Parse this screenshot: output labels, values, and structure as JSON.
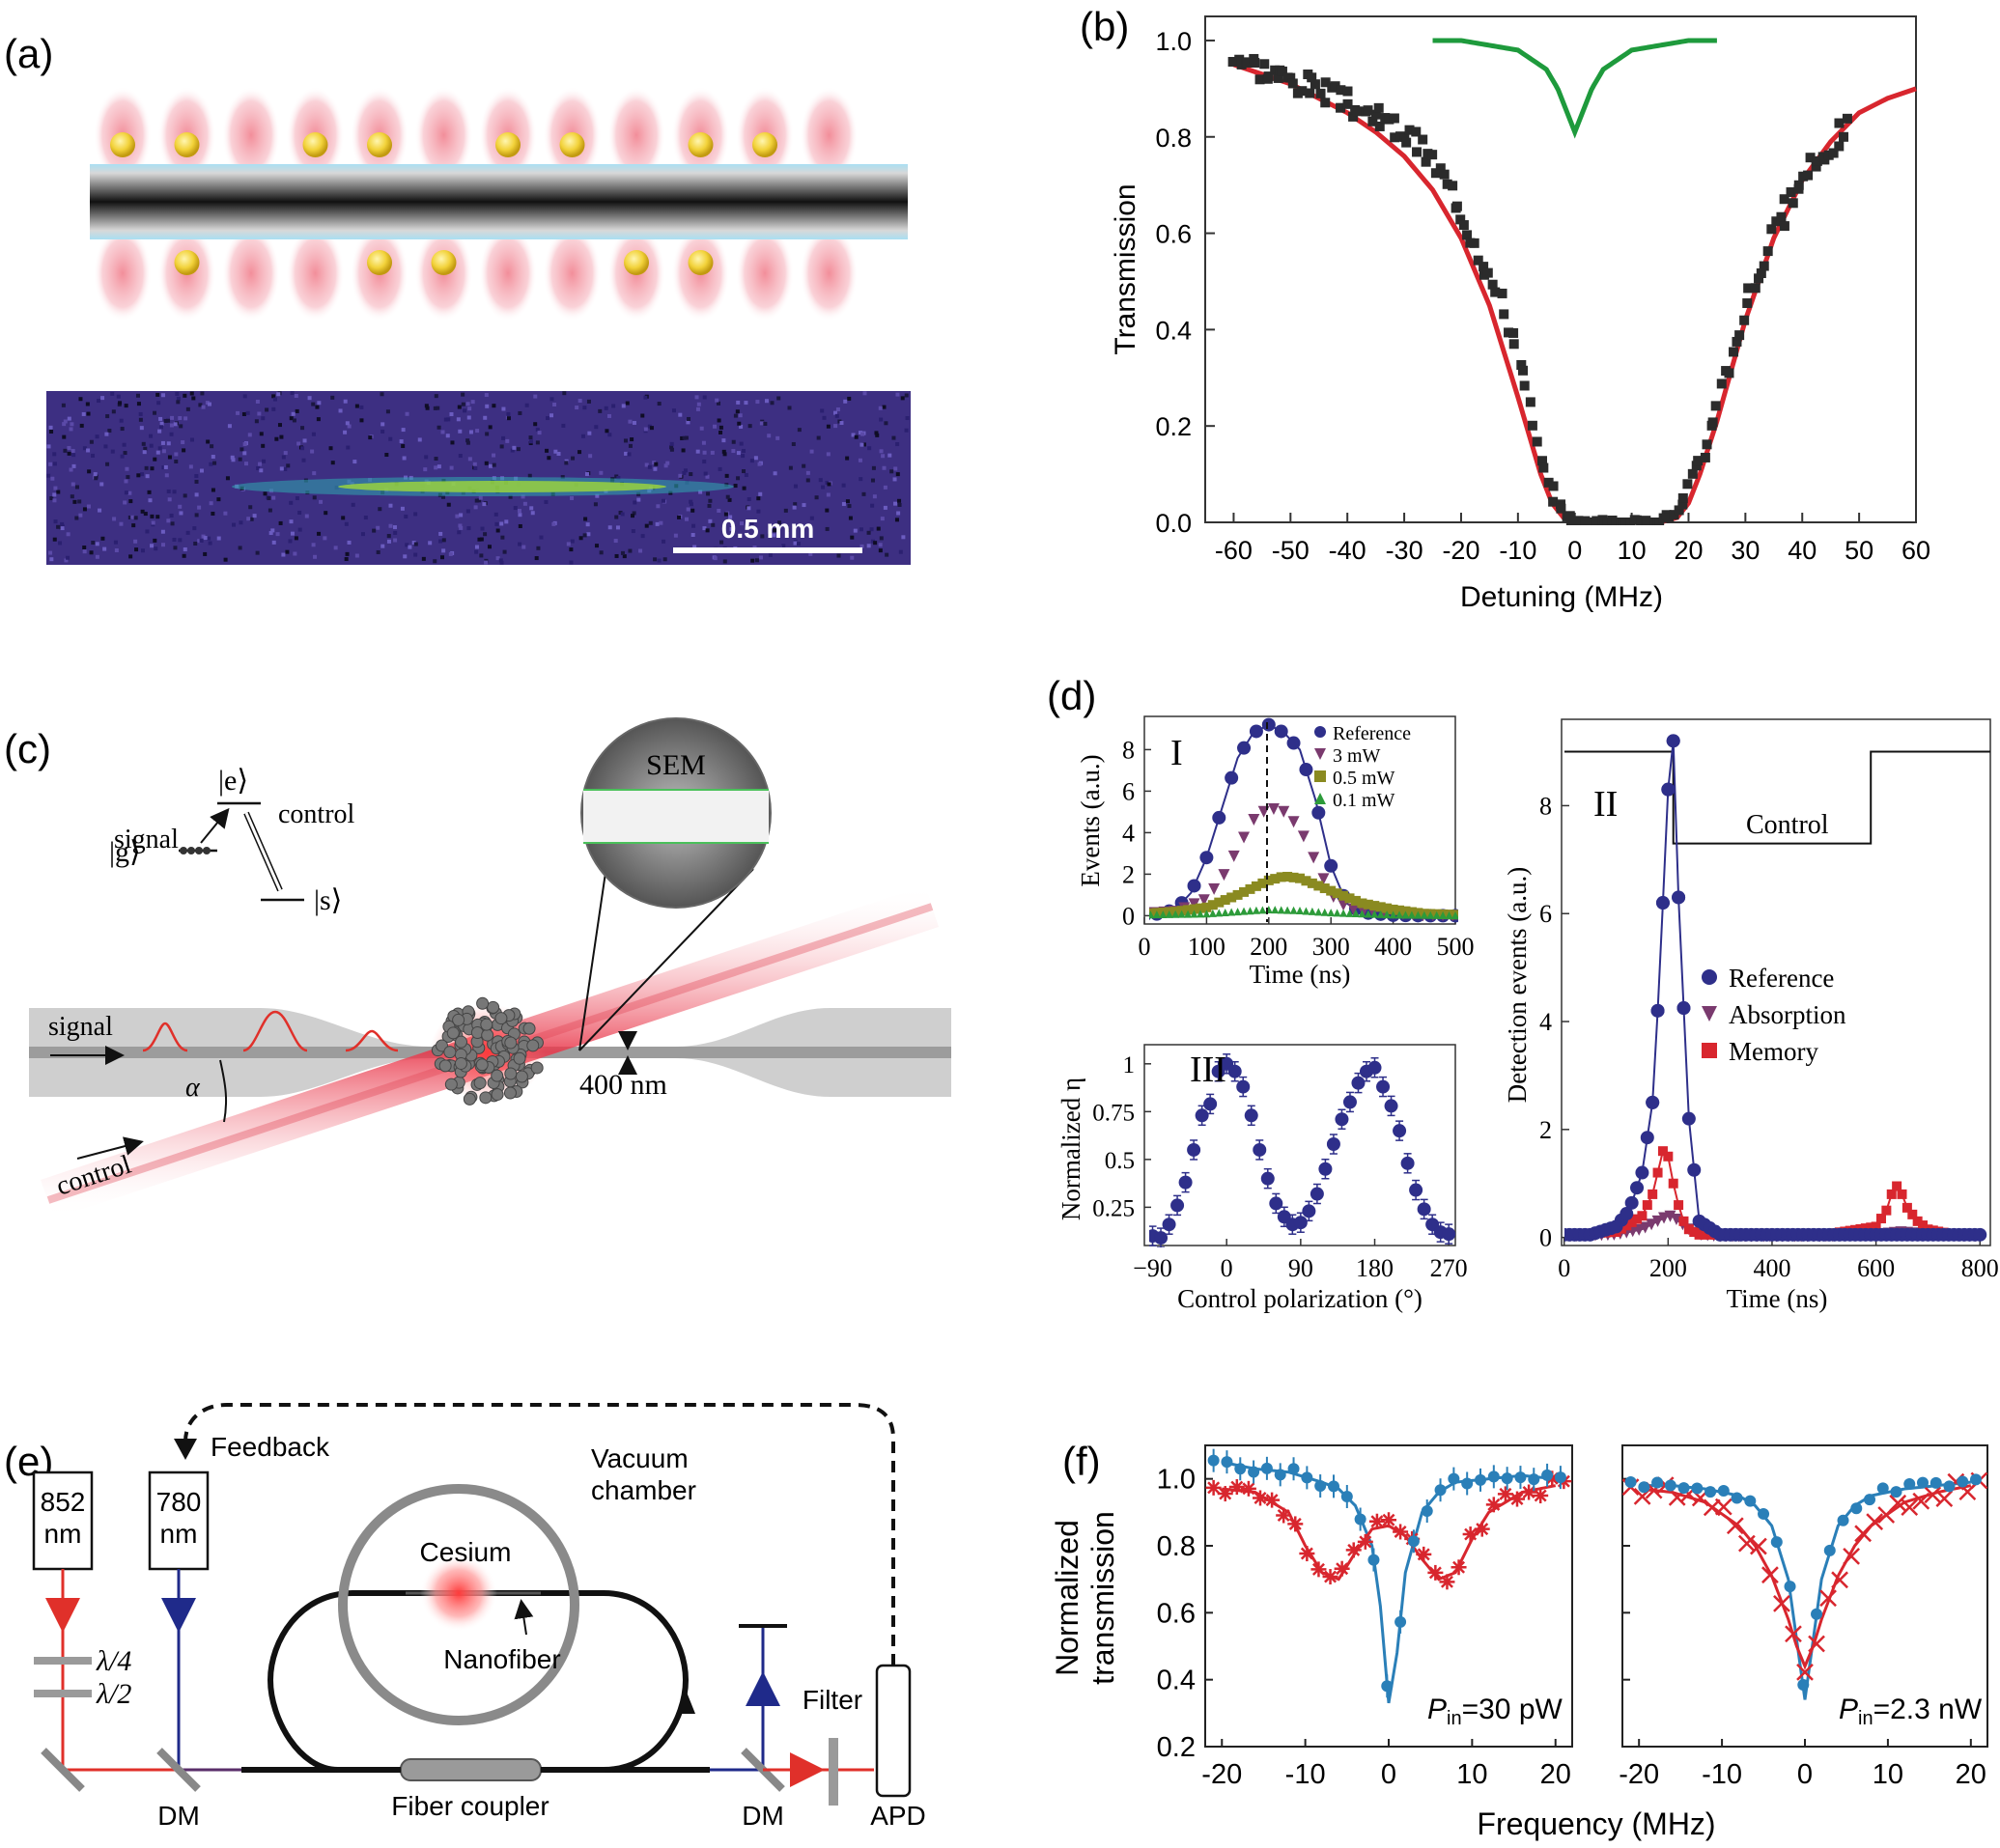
{
  "panels": {
    "a": {
      "label": "(a)",
      "scale_bar": "0.5 mm",
      "top_atoms": [
        true,
        true,
        false,
        true,
        true,
        false,
        true,
        true,
        false,
        true,
        true,
        false
      ],
      "bottom_atoms": [
        false,
        true,
        false,
        false,
        true,
        true,
        false,
        false,
        true,
        true,
        false,
        false
      ]
    },
    "b": {
      "label": "(b)",
      "xlabel": "Detuning (MHz)",
      "ylabel": "Transmission",
      "xticks": [
        "-60",
        "-50",
        "-40",
        "-30",
        "-20",
        "-10",
        "0",
        "10",
        "20",
        "30",
        "40",
        "50",
        "60"
      ],
      "yticks": [
        "0.0",
        "0.2",
        "0.4",
        "0.6",
        "0.8",
        "1.0"
      ]
    },
    "c": {
      "label": "(c)",
      "level_e": "|e⟩",
      "level_g": "|g⟩",
      "level_s": "|s⟩",
      "signal_level_label": "signal",
      "control_level_label": "control",
      "sem_label": "SEM",
      "signal_beam_label": "signal",
      "control_beam_label": "control",
      "alpha_label": "α",
      "fiber_width_label": "400 nm"
    },
    "d": {
      "label": "(d)",
      "I": {
        "roman": "I",
        "xlabel": "Time (ns)",
        "ylabel": "Events (a.u.)",
        "xticks": [
          "0",
          "100",
          "200",
          "300",
          "400",
          "500"
        ],
        "yticks": [
          "0",
          "2",
          "4",
          "6",
          "8"
        ],
        "legend": [
          "Reference",
          "3 mW",
          "0.5 mW",
          "0.1 mW"
        ]
      },
      "II": {
        "roman": "II",
        "xlabel": "Time (ns)",
        "ylabel": "Detection events (a.u.)",
        "xticks": [
          "0",
          "200",
          "400",
          "600",
          "800"
        ],
        "yticks": [
          "0",
          "2",
          "4",
          "6",
          "8"
        ],
        "control_label": "Control",
        "legend": [
          "Reference",
          "Absorption",
          "Memory"
        ]
      },
      "III": {
        "roman": "III",
        "xlabel": "Control polarization (°)",
        "ylabel": "Normalized η",
        "xticks": [
          "−90",
          "0",
          "90",
          "180",
          "270"
        ],
        "yticks": [
          "0.25",
          "0.5",
          "0.75",
          "1"
        ]
      }
    },
    "e": {
      "label": "(e)",
      "feedback": "Feedback",
      "laser_852": [
        "852",
        "nm"
      ],
      "laser_780": [
        "780",
        "nm"
      ],
      "cesium": "Cesium",
      "vacuum": [
        "Vacuum",
        "chamber"
      ],
      "nanofiber": "Nanofiber",
      "quarter_wave": "λ/4",
      "half_wave": "λ/2",
      "dm_left": "DM",
      "dm_right": "DM",
      "fiber_coupler": "Fiber coupler",
      "filter": "Filter",
      "apd": "APD"
    },
    "f": {
      "label": "(f)",
      "ylabel": [
        "Normalized",
        "transmission"
      ],
      "xlabel": "Frequency (MHz)",
      "xticks": [
        "-20",
        "-10",
        "0",
        "10",
        "20"
      ],
      "yticks": [
        "0.2",
        "0.4",
        "0.6",
        "0.8",
        "1.0"
      ],
      "left_pin": [
        "P",
        "in",
        "=30 pW"
      ],
      "right_pin": [
        "P",
        "in",
        "=2.3 nW"
      ]
    }
  },
  "colors": {
    "red_fit": "#d8262e",
    "green_curve": "#1e9a3c",
    "dark_points": "#2b2b2b",
    "navy": "#2e2f8a",
    "purple": "#7a3a6e",
    "olive": "#8a8a20",
    "green_small": "#2d9b3a",
    "blue_f": "#2a7fb8",
    "red_f": "#d8262e"
  },
  "chart_data": [
    {
      "type": "scatter",
      "panel": "b",
      "xlabel": "Detuning (MHz)",
      "ylabel": "Transmission",
      "xlim": [
        -60,
        60
      ],
      "ylim": [
        0,
        1
      ],
      "series": [
        {
          "kind": "points",
          "x": [
            -60,
            -55,
            -50,
            -45,
            -40,
            -35,
            -30,
            -25,
            -20,
            -15,
            -10,
            -8,
            -6,
            -4,
            -2,
            0,
            2,
            4,
            6,
            8,
            10,
            12,
            14,
            16,
            18,
            20,
            22,
            25,
            30,
            35,
            40,
            45,
            48
          ],
          "y": [
            0.97,
            0.94,
            0.92,
            0.9,
            0.87,
            0.84,
            0.81,
            0.75,
            0.65,
            0.52,
            0.36,
            0.24,
            0.12,
            0.05,
            0.02,
            0.0,
            0.0,
            0.0,
            0.0,
            0.0,
            0.0,
            0.0,
            0.0,
            0.01,
            0.02,
            0.06,
            0.12,
            0.25,
            0.45,
            0.6,
            0.71,
            0.78,
            0.83
          ]
        },
        {
          "kind": "fit",
          "x": [
            -60,
            -55,
            -50,
            -45,
            -40,
            -35,
            -30,
            -25,
            -20,
            -15,
            -10,
            -6,
            -4,
            -2,
            0,
            5,
            10,
            15,
            18,
            20,
            22,
            25,
            30,
            35,
            40,
            45,
            50,
            55,
            60
          ],
          "y": [
            0.95,
            0.93,
            0.91,
            0.88,
            0.85,
            0.81,
            0.76,
            0.69,
            0.59,
            0.45,
            0.26,
            0.1,
            0.04,
            0.01,
            0.0,
            0.0,
            0.0,
            0.0,
            0.01,
            0.04,
            0.1,
            0.21,
            0.42,
            0.59,
            0.71,
            0.79,
            0.85,
            0.88,
            0.9
          ]
        },
        {
          "kind": "reference",
          "x": [
            -25,
            -20,
            -15,
            -10,
            -5,
            -3,
            -1,
            0,
            1,
            3,
            5,
            10,
            15,
            20,
            25
          ],
          "y": [
            1.0,
            1.0,
            0.99,
            0.98,
            0.94,
            0.9,
            0.84,
            0.81,
            0.84,
            0.9,
            0.94,
            0.98,
            0.99,
            1.0,
            1.0
          ]
        }
      ]
    },
    {
      "type": "scatter",
      "panel": "d-I",
      "xlabel": "Time (ns)",
      "ylabel": "Events (a.u.)",
      "xlim": [
        0,
        500
      ],
      "ylim": [
        0,
        9.5
      ],
      "series": [
        {
          "name": "Reference",
          "x": [
            0,
            25,
            50,
            75,
            100,
            125,
            150,
            175,
            200,
            225,
            250,
            275,
            300,
            325,
            350,
            400,
            450,
            500
          ],
          "y": [
            0,
            0.1,
            0.3,
            1.1,
            2.8,
            5.2,
            7.6,
            8.8,
            9.2,
            8.8,
            8.0,
            5.6,
            2.4,
            0.6,
            0.15,
            0.02,
            0,
            0
          ]
        },
        {
          "name": "3 mW",
          "x": [
            0,
            50,
            100,
            125,
            150,
            175,
            200,
            225,
            250,
            275,
            300,
            325,
            350,
            400,
            450,
            500
          ],
          "y": [
            0.1,
            0.2,
            0.8,
            1.8,
            3.2,
            4.6,
            5.2,
            5.0,
            4.2,
            2.6,
            1.0,
            0.4,
            0.2,
            0.1,
            0,
            0
          ]
        },
        {
          "name": "0.5 mW",
          "x": [
            0,
            50,
            100,
            150,
            200,
            225,
            250,
            300,
            350,
            400,
            450,
            500
          ],
          "y": [
            0.1,
            0.2,
            0.4,
            1.0,
            1.7,
            1.9,
            1.8,
            1.2,
            0.6,
            0.3,
            0.1,
            0.05
          ]
        },
        {
          "name": "0.1 mW",
          "x": [
            0,
            100,
            150,
            200,
            250,
            300,
            400,
            500
          ],
          "y": [
            0.05,
            0.1,
            0.2,
            0.3,
            0.25,
            0.15,
            0.05,
            0.02
          ]
        }
      ]
    },
    {
      "type": "scatter",
      "panel": "d-III",
      "xlabel": "Control polarization (°)",
      "ylabel": "Normalized η",
      "xlim": [
        -100,
        280
      ],
      "ylim": [
        0.05,
        1.1
      ],
      "series": [
        {
          "x": [
            -90,
            -80,
            -70,
            -60,
            -50,
            -40,
            -30,
            -20,
            -10,
            0,
            10,
            20,
            30,
            40,
            50,
            60,
            70,
            80,
            90,
            100,
            110,
            120,
            130,
            140,
            150,
            160,
            170,
            180,
            190,
            200,
            210,
            220,
            230,
            240,
            250,
            260,
            270
          ],
          "y": [
            0.1,
            0.09,
            0.16,
            0.26,
            0.38,
            0.55,
            0.73,
            0.79,
            0.96,
            1.0,
            0.96,
            0.88,
            0.73,
            0.55,
            0.4,
            0.27,
            0.2,
            0.16,
            0.17,
            0.23,
            0.32,
            0.45,
            0.58,
            0.71,
            0.8,
            0.9,
            0.96,
            0.98,
            0.88,
            0.78,
            0.65,
            0.48,
            0.34,
            0.24,
            0.16,
            0.12,
            0.11
          ]
        }
      ]
    },
    {
      "type": "scatter",
      "panel": "d-II",
      "xlabel": "Time (ns)",
      "ylabel": "Detection events (a.u.)",
      "xlim": [
        0,
        820
      ],
      "ylim": [
        0,
        9.6
      ],
      "series": [
        {
          "name": "Reference",
          "x": [
            0,
            50,
            100,
            125,
            150,
            170,
            180,
            190,
            200,
            210,
            220,
            240,
            260,
            300,
            400,
            500,
            600,
            700,
            800
          ],
          "y": [
            0.05,
            0.05,
            0.2,
            0.5,
            1.2,
            2.5,
            4.2,
            6.2,
            8.3,
            9.2,
            6.3,
            2.2,
            0.3,
            0.05,
            0.05,
            0.05,
            0.05,
            0.05,
            0.05
          ]
        },
        {
          "name": "Absorption",
          "x": [
            0,
            100,
            150,
            180,
            200,
            210,
            220,
            240,
            260,
            300,
            400,
            500,
            600,
            650,
            700,
            800
          ],
          "y": [
            0.02,
            0.05,
            0.15,
            0.3,
            0.4,
            0.38,
            0.3,
            0.15,
            0.05,
            0.02,
            0.02,
            0.02,
            0.05,
            0.1,
            0.05,
            0.02
          ]
        },
        {
          "name": "Memory",
          "x": [
            0,
            100,
            150,
            170,
            180,
            190,
            200,
            210,
            220,
            230,
            240,
            260,
            300,
            400,
            500,
            600,
            620,
            630,
            640,
            650,
            660,
            680,
            700,
            750,
            800
          ],
          "y": [
            0.05,
            0.1,
            0.4,
            0.8,
            1.2,
            1.6,
            1.5,
            1.0,
            0.6,
            0.3,
            0.15,
            0.05,
            0.05,
            0.05,
            0.05,
            0.2,
            0.5,
            0.8,
            0.95,
            0.8,
            0.55,
            0.3,
            0.15,
            0.05,
            0.05
          ]
        },
        {
          "name": "Control",
          "kind": "step",
          "x": [
            0,
            210,
            210,
            590,
            590,
            820
          ],
          "y": [
            9.0,
            9.0,
            7.3,
            7.3,
            9.0,
            9.0
          ]
        }
      ]
    },
    {
      "type": "scatter",
      "panel": "f-left",
      "xlabel": "Frequency (MHz)",
      "ylabel": "Normalized transmission",
      "xlim": [
        -22,
        22
      ],
      "ylim": [
        0.2,
        1.1
      ],
      "series": [
        {
          "name": "blue",
          "x": [
            -20,
            -16,
            -12,
            -8,
            -6,
            -4,
            -2,
            -1,
            0,
            1,
            2,
            4,
            6,
            8,
            12,
            16,
            20
          ],
          "y": [
            1.05,
            1.03,
            1.02,
            0.99,
            0.97,
            0.92,
            0.8,
            0.62,
            0.33,
            0.48,
            0.72,
            0.9,
            0.96,
            0.99,
            1.0,
            1.01,
            1.0
          ]
        },
        {
          "name": "red",
          "x": [
            -20,
            -16,
            -12,
            -10,
            -8,
            -6,
            -4,
            -2,
            0,
            2,
            4,
            6,
            8,
            10,
            12,
            16,
            20
          ],
          "y": [
            0.97,
            0.96,
            0.9,
            0.8,
            0.72,
            0.7,
            0.78,
            0.85,
            0.86,
            0.83,
            0.76,
            0.7,
            0.72,
            0.82,
            0.9,
            0.96,
            0.98
          ]
        }
      ]
    },
    {
      "type": "scatter",
      "panel": "f-right",
      "xlabel": "Frequency (MHz)",
      "ylabel": "Normalized transmission",
      "xlim": [
        -22,
        22
      ],
      "ylim": [
        0.2,
        1.1
      ],
      "series": [
        {
          "name": "blue",
          "x": [
            -20,
            -16,
            -12,
            -8,
            -6,
            -4,
            -2,
            -1,
            0,
            1,
            2,
            4,
            6,
            8,
            12,
            16,
            20
          ],
          "y": [
            0.98,
            0.98,
            0.97,
            0.95,
            0.92,
            0.86,
            0.7,
            0.52,
            0.34,
            0.52,
            0.7,
            0.86,
            0.92,
            0.95,
            0.97,
            0.98,
            0.99
          ]
        },
        {
          "name": "red",
          "x": [
            -20,
            -16,
            -12,
            -8,
            -6,
            -4,
            -2,
            -1,
            0,
            1,
            2,
            4,
            6,
            8,
            12,
            16,
            20
          ],
          "y": [
            0.97,
            0.96,
            0.93,
            0.86,
            0.8,
            0.71,
            0.58,
            0.5,
            0.44,
            0.5,
            0.58,
            0.71,
            0.8,
            0.86,
            0.93,
            0.96,
            0.98
          ]
        }
      ]
    }
  ]
}
